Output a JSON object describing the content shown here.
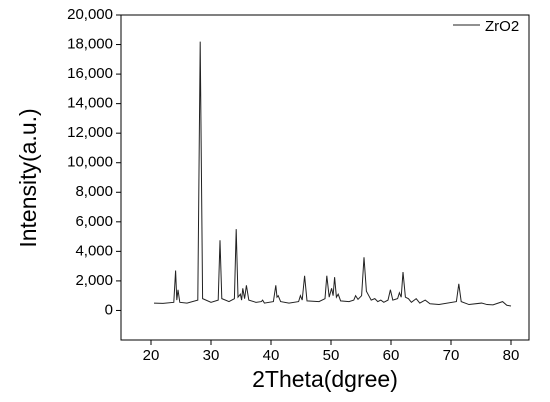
{
  "chart_data": {
    "type": "line",
    "x_label": "2Theta(dgree)",
    "y_label": "Intensity(a.u.)",
    "xlim": [
      15,
      83
    ],
    "xticks": [
      20,
      30,
      40,
      50,
      60,
      70,
      80
    ],
    "ylim": [
      -2000,
      20000
    ],
    "yticks": [
      0,
      {
        "value": 2000,
        "label": "2,000"
      },
      {
        "value": 4000,
        "label": "4,000"
      },
      {
        "value": 6000,
        "label": "6,000"
      },
      {
        "value": 8000,
        "label": "8,000"
      },
      {
        "value": 10000,
        "label": "10,000"
      },
      {
        "value": 12000,
        "label": "12,000"
      },
      {
        "value": 14000,
        "label": "14,000"
      },
      {
        "value": 16000,
        "label": "16,000"
      },
      {
        "value": 18000,
        "label": "18,000"
      },
      {
        "value": 20000,
        "label": "20,000"
      }
    ],
    "legend": "upper right",
    "x": [
      20.5,
      22,
      23.8,
      24.1,
      24.3,
      24.5,
      24.8,
      26,
      27.8,
      28.2,
      28.6,
      30,
      31.2,
      31.5,
      31.8,
      33,
      33.9,
      34.2,
      34.5,
      34.9,
      35.1,
      35.3,
      35.6,
      35.9,
      36.3,
      37.5,
      38.4,
      38.6,
      38.9,
      40.4,
      40.8,
      41.0,
      41.2,
      41.6,
      43,
      44.6,
      44.9,
      45.2,
      45.6,
      46,
      48,
      49.0,
      49.3,
      49.7,
      50.1,
      50.35,
      50.6,
      50.9,
      51.2,
      51.6,
      53,
      53.8,
      54.1,
      54.5,
      55.1,
      55.5,
      55.9,
      56.3,
      56.7,
      57.3,
      57.8,
      58.3,
      58.8,
      59.5,
      59.9,
      60.3,
      61.1,
      61.4,
      61.7,
      62.0,
      62.4,
      62.9,
      63.4,
      64.2,
      64.8,
      65.7,
      66.5,
      68,
      70.9,
      71.3,
      71.7,
      73,
      75.1,
      76,
      77,
      78.6,
      79.3,
      80
    ],
    "series": [
      {
        "name": "ZrO2",
        "color": "#222222",
        "values": [
          500,
          480,
          550,
          2700,
          700,
          1400,
          550,
          500,
          700,
          18200,
          800,
          550,
          700,
          4750,
          800,
          600,
          800,
          5500,
          900,
          1100,
          700,
          1500,
          800,
          1700,
          700,
          550,
          600,
          700,
          500,
          600,
          1700,
          900,
          1000,
          600,
          500,
          600,
          1000,
          700,
          2350,
          650,
          600,
          800,
          2350,
          900,
          1500,
          1000,
          2250,
          900,
          1100,
          650,
          600,
          700,
          1000,
          750,
          1000,
          3600,
          1300,
          1000,
          700,
          800,
          600,
          700,
          550,
          700,
          1400,
          700,
          800,
          1200,
          900,
          2600,
          900,
          800,
          550,
          800,
          500,
          700,
          450,
          400,
          600,
          1800,
          600,
          400,
          500,
          400,
          380,
          600,
          350,
          300
        ]
      }
    ]
  }
}
